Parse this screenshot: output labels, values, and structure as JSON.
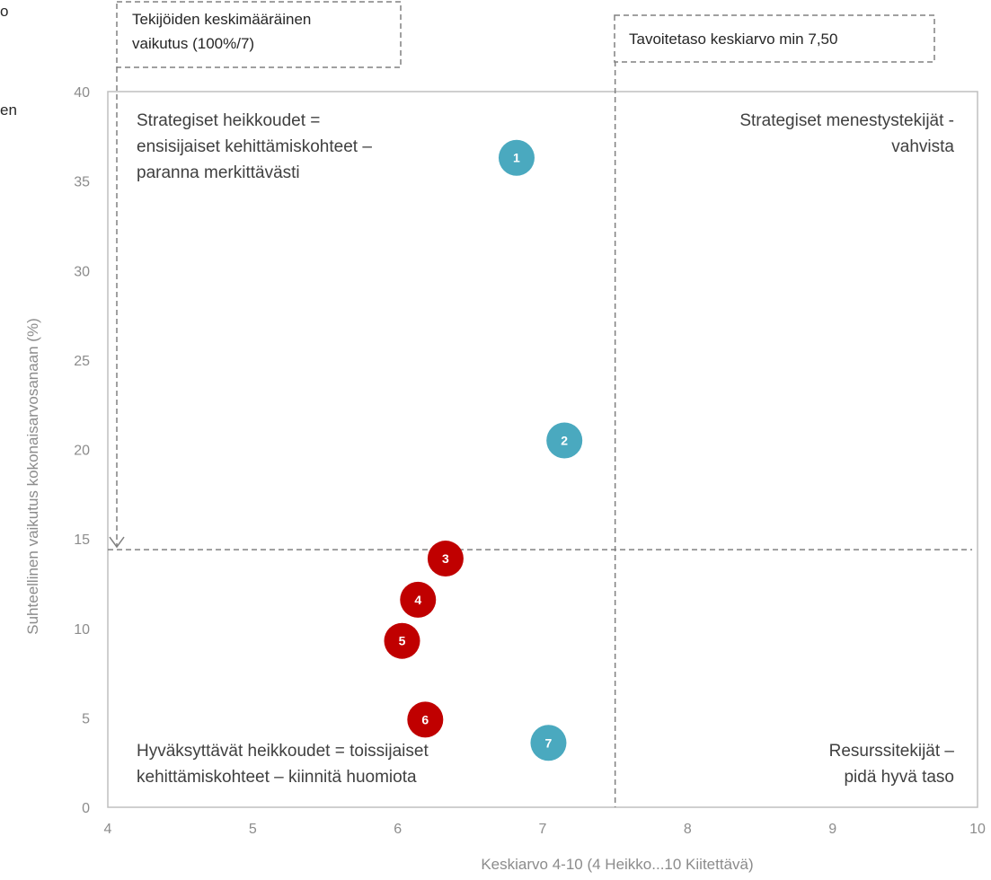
{
  "edge_fragments": [
    "o",
    "en"
  ],
  "chart_data": {
    "type": "scatter",
    "xlabel": "Keskiarvo 4-10 (4 Heikko...10 Kiitettävä)",
    "ylabel": "Suhteellinen vaikutus kokonaisarvosanaan (%)",
    "xlim": [
      4,
      10
    ],
    "ylim": [
      0,
      40
    ],
    "x_ticks": [
      4,
      5,
      6,
      7,
      8,
      9,
      10
    ],
    "y_ticks": [
      0,
      5,
      10,
      15,
      20,
      25,
      30,
      35,
      40
    ],
    "grid": false,
    "points": [
      {
        "label": "1",
        "x": 6.82,
        "y": 36.3,
        "color": "#4aa9bf"
      },
      {
        "label": "2",
        "x": 7.15,
        "y": 20.5,
        "color": "#4aa9bf"
      },
      {
        "label": "3",
        "x": 6.33,
        "y": 13.9,
        "color": "#c00000"
      },
      {
        "label": "4",
        "x": 6.14,
        "y": 11.6,
        "color": "#c00000"
      },
      {
        "label": "5",
        "x": 6.03,
        "y": 9.3,
        "color": "#c00000"
      },
      {
        "label": "6",
        "x": 6.19,
        "y": 4.9,
        "color": "#c00000"
      },
      {
        "label": "7",
        "x": 7.04,
        "y": 3.6,
        "color": "#4aa9bf"
      }
    ],
    "reference_lines": {
      "vertical_x": 7.5,
      "horizontal_y": 14.4
    },
    "callouts": [
      {
        "lines": [
          "Tekijöiden keskimääräinen",
          "vaikutus (100%/7)"
        ]
      },
      {
        "lines": [
          "Tavoitetaso keskiarvo min 7,50"
        ]
      }
    ],
    "quadrants": {
      "top_left": [
        "Strategiset heikkoudet =",
        "ensisijaiset kehittämiskohteet –",
        "paranna merkittävästi"
      ],
      "top_right": [
        "Strategiset menestystekijät -",
        "vahvista"
      ],
      "bottom_left": [
        "Hyväksyttävät heikkoudet = toissijaiset",
        "kehittämiskohteet – kiinnitä huomiota"
      ],
      "bottom_right": [
        "Resurssitekijät –",
        "pidä hyvä taso"
      ]
    }
  }
}
